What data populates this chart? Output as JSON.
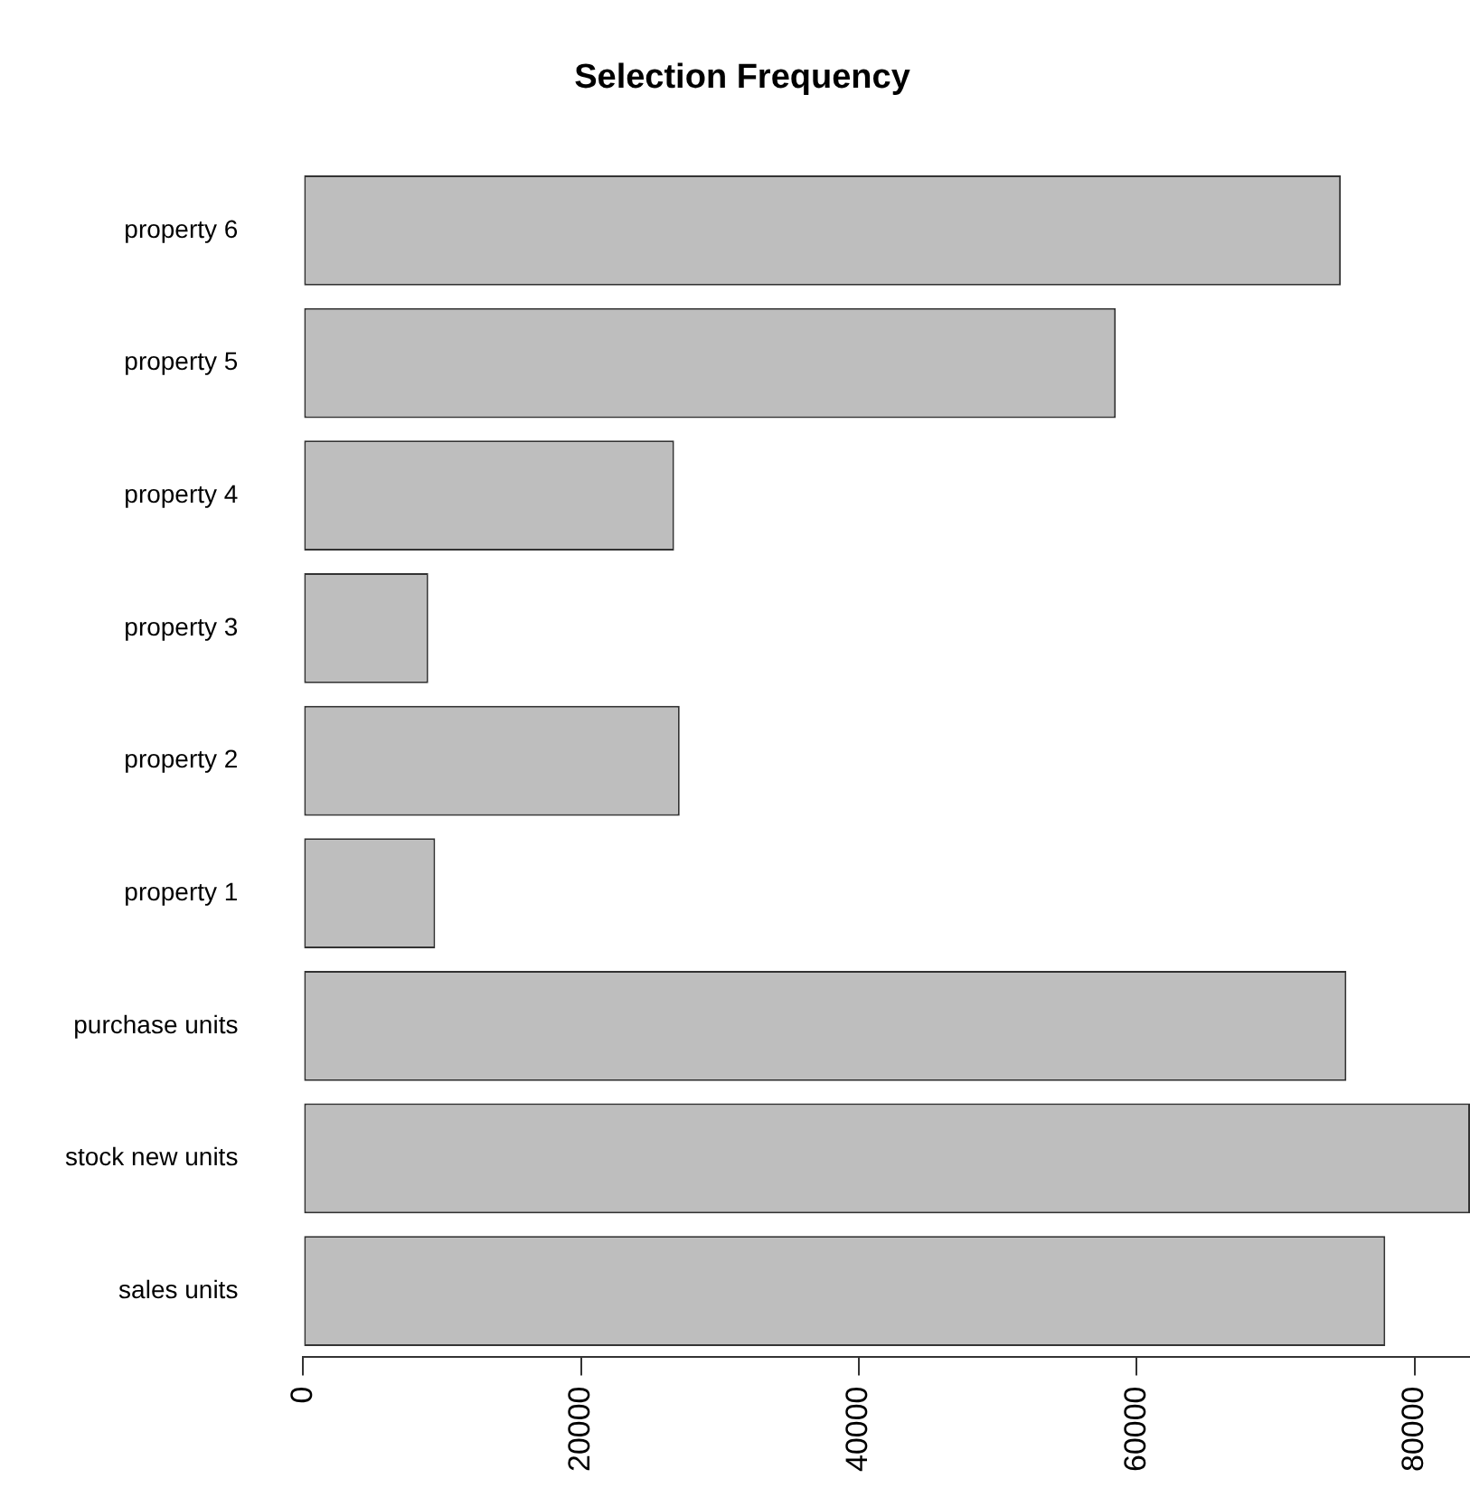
{
  "chart_data": {
    "type": "bar",
    "orientation": "horizontal",
    "title": "Selection Frequency",
    "categories": [
      "property 6",
      "property 5",
      "property 4",
      "property 3",
      "property 2",
      "property 1",
      "purchase units",
      "stock new units",
      "sales units"
    ],
    "values": [
      74700,
      58500,
      26700,
      9000,
      27100,
      9500,
      75100,
      84000,
      77900
    ],
    "color": "#bebebe",
    "xlim": [
      0,
      84000
    ],
    "xticks": [
      0,
      20000,
      40000,
      60000,
      80000
    ],
    "grid": false,
    "legend": false
  }
}
